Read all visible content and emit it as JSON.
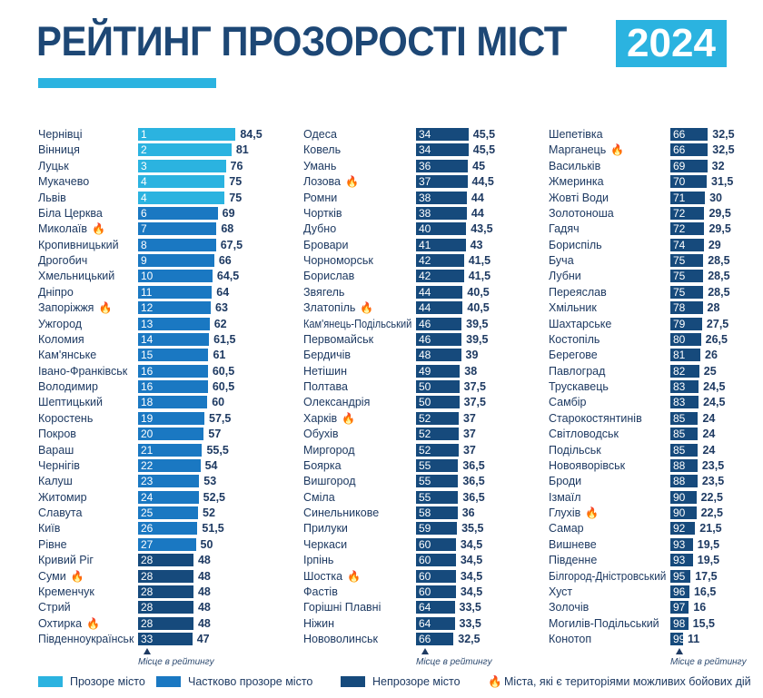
{
  "header": {
    "title": "РЕЙТИНГ ПРОЗОРОСТІ МІСТ",
    "year": "2024"
  },
  "colors": {
    "transparent": "#2bb3e0",
    "partial": "#1a78c2",
    "opaque": "#164a7c",
    "fire": "#f2a33a"
  },
  "rank_note": "Місце в рейтингу",
  "legend": [
    {
      "key": "transparent",
      "label": "Прозоре місто"
    },
    {
      "key": "partial",
      "label": "Частково прозоре місто"
    },
    {
      "key": "opaque",
      "label": "Непрозоре місто"
    },
    {
      "key": "fire",
      "label": "Міста, які є територіями можливих бойових дій",
      "icon": "fire-icon"
    }
  ],
  "chart_data": {
    "type": "bar",
    "title": "РЕЙТИНГ ПРОЗОРОСТІ МІСТ 2024",
    "orientation": "horizontal",
    "fields": [
      "city",
      "rank",
      "score",
      "category",
      "combat_zone"
    ],
    "rows": [
      [
        "Чернівці",
        1,
        84.5,
        "transparent",
        false
      ],
      [
        "Вінниця",
        2,
        81,
        "transparent",
        false
      ],
      [
        "Луцьк",
        3,
        76,
        "transparent",
        false
      ],
      [
        "Мукачево",
        4,
        75,
        "transparent",
        false
      ],
      [
        "Львів",
        4,
        75,
        "transparent",
        false
      ],
      [
        "Біла Церква",
        6,
        69,
        "partial",
        false
      ],
      [
        "Миколаїв",
        7,
        68,
        "partial",
        true
      ],
      [
        "Кропивницький",
        8,
        67.5,
        "partial",
        false
      ],
      [
        "Дрогобич",
        9,
        66,
        "partial",
        false
      ],
      [
        "Хмельницький",
        10,
        64.5,
        "partial",
        false
      ],
      [
        "Дніпро",
        11,
        64,
        "partial",
        false
      ],
      [
        "Запоріжжя",
        12,
        63,
        "partial",
        true
      ],
      [
        "Ужгород",
        13,
        62,
        "partial",
        false
      ],
      [
        "Коломия",
        14,
        61.5,
        "partial",
        false
      ],
      [
        "Кам'янське",
        15,
        61,
        "partial",
        false
      ],
      [
        "Івано-Франківськ",
        16,
        60.5,
        "partial",
        false
      ],
      [
        "Володимир",
        16,
        60.5,
        "partial",
        false
      ],
      [
        "Шептицький",
        18,
        60,
        "partial",
        false
      ],
      [
        "Коростень",
        19,
        57.5,
        "partial",
        false
      ],
      [
        "Покров",
        20,
        57,
        "partial",
        false
      ],
      [
        "Вараш",
        21,
        55.5,
        "partial",
        false
      ],
      [
        "Чернігів",
        22,
        54,
        "partial",
        false
      ],
      [
        "Калуш",
        23,
        53,
        "partial",
        false
      ],
      [
        "Житомир",
        24,
        52.5,
        "partial",
        false
      ],
      [
        "Славута",
        25,
        52,
        "partial",
        false
      ],
      [
        "Київ",
        26,
        51.5,
        "partial",
        false
      ],
      [
        "Рівне",
        27,
        50,
        "partial",
        false
      ],
      [
        "Кривий Ріг",
        28,
        48,
        "opaque",
        false
      ],
      [
        "Суми",
        28,
        48,
        "opaque",
        true
      ],
      [
        "Кременчук",
        28,
        48,
        "opaque",
        false
      ],
      [
        "Стрий",
        28,
        48,
        "opaque",
        false
      ],
      [
        "Охтирка",
        28,
        48,
        "opaque",
        true
      ],
      [
        "Південноукраїнськ",
        33,
        47,
        "opaque",
        false
      ],
      [
        "Одеса",
        34,
        45.5,
        "opaque",
        false
      ],
      [
        "Ковель",
        34,
        45.5,
        "opaque",
        false
      ],
      [
        "Умань",
        36,
        45,
        "opaque",
        false
      ],
      [
        "Лозова",
        37,
        44.5,
        "opaque",
        true
      ],
      [
        "Ромни",
        38,
        44,
        "opaque",
        false
      ],
      [
        "Чортків",
        38,
        44,
        "opaque",
        false
      ],
      [
        "Дубно",
        40,
        43.5,
        "opaque",
        false
      ],
      [
        "Бровари",
        41,
        43,
        "opaque",
        false
      ],
      [
        "Чорноморськ",
        42,
        41.5,
        "opaque",
        false
      ],
      [
        "Борислав",
        42,
        41.5,
        "opaque",
        false
      ],
      [
        "Звягель",
        44,
        40.5,
        "opaque",
        false
      ],
      [
        "Златопіль",
        44,
        40.5,
        "opaque",
        true
      ],
      [
        "Кам'янець-Подільський",
        46,
        39.5,
        "opaque",
        false
      ],
      [
        "Первомайськ",
        46,
        39.5,
        "opaque",
        false
      ],
      [
        "Бердичів",
        48,
        39,
        "opaque",
        false
      ],
      [
        "Нетішин",
        49,
        38,
        "opaque",
        false
      ],
      [
        "Полтава",
        50,
        37.5,
        "opaque",
        false
      ],
      [
        "Олександрія",
        50,
        37.5,
        "opaque",
        false
      ],
      [
        "Харків",
        52,
        37,
        "opaque",
        true
      ],
      [
        "Обухів",
        52,
        37,
        "opaque",
        false
      ],
      [
        "Миргород",
        52,
        37,
        "opaque",
        false
      ],
      [
        "Боярка",
        55,
        36.5,
        "opaque",
        false
      ],
      [
        "Вишгород",
        55,
        36.5,
        "opaque",
        false
      ],
      [
        "Сміла",
        55,
        36.5,
        "opaque",
        false
      ],
      [
        "Синельникове",
        58,
        36,
        "opaque",
        false
      ],
      [
        "Прилуки",
        59,
        35.5,
        "opaque",
        false
      ],
      [
        "Черкаси",
        60,
        34.5,
        "opaque",
        false
      ],
      [
        "Ірпінь",
        60,
        34.5,
        "opaque",
        false
      ],
      [
        "Шостка",
        60,
        34.5,
        "opaque",
        true
      ],
      [
        "Фастів",
        60,
        34.5,
        "opaque",
        false
      ],
      [
        "Горішні Плавні",
        64,
        33.5,
        "opaque",
        false
      ],
      [
        "Ніжин",
        64,
        33.5,
        "opaque",
        false
      ],
      [
        "Нововолинськ",
        66,
        32.5,
        "opaque",
        false
      ],
      [
        "Шепетівка",
        66,
        32.5,
        "opaque",
        false
      ],
      [
        "Марганець",
        66,
        32.5,
        "opaque",
        true
      ],
      [
        "Васильків",
        69,
        32,
        "opaque",
        false
      ],
      [
        "Жмеринка",
        70,
        31.5,
        "opaque",
        false
      ],
      [
        "Жовті Води",
        71,
        30,
        "opaque",
        false
      ],
      [
        "Золотоноша",
        72,
        29.5,
        "opaque",
        false
      ],
      [
        "Гадяч",
        72,
        29.5,
        "opaque",
        false
      ],
      [
        "Бориспіль",
        74,
        29,
        "opaque",
        false
      ],
      [
        "Буча",
        75,
        28.5,
        "opaque",
        false
      ],
      [
        "Лубни",
        75,
        28.5,
        "opaque",
        false
      ],
      [
        "Переяслав",
        75,
        28.5,
        "opaque",
        false
      ],
      [
        "Хмільник",
        78,
        28,
        "opaque",
        false
      ],
      [
        "Шахтарське",
        79,
        27.5,
        "opaque",
        false
      ],
      [
        "Костопіль",
        80,
        26.5,
        "opaque",
        false
      ],
      [
        "Берегове",
        81,
        26,
        "opaque",
        false
      ],
      [
        "Павлоград",
        82,
        25,
        "opaque",
        false
      ],
      [
        "Трускавець",
        83,
        24.5,
        "opaque",
        false
      ],
      [
        "Самбір",
        83,
        24.5,
        "opaque",
        false
      ],
      [
        "Старокостянтинів",
        85,
        24,
        "opaque",
        false
      ],
      [
        "Світловодськ",
        85,
        24,
        "opaque",
        false
      ],
      [
        "Подільськ",
        85,
        24,
        "opaque",
        false
      ],
      [
        "Новояворівськ",
        88,
        23.5,
        "opaque",
        false
      ],
      [
        "Броди",
        88,
        23.5,
        "opaque",
        false
      ],
      [
        "Ізмаїл",
        90,
        22.5,
        "opaque",
        false
      ],
      [
        "Глухів",
        90,
        22.5,
        "opaque",
        true
      ],
      [
        "Самар",
        92,
        21.5,
        "opaque",
        false
      ],
      [
        "Вишневе",
        93,
        19.5,
        "opaque",
        false
      ],
      [
        "Південне",
        93,
        19.5,
        "opaque",
        false
      ],
      [
        "Білгород-Дністровський",
        95,
        17.5,
        "opaque",
        false
      ],
      [
        "Хуст",
        96,
        16.5,
        "opaque",
        false
      ],
      [
        "Золочів",
        97,
        16,
        "opaque",
        false
      ],
      [
        "Могилів-Подільський",
        98,
        15.5,
        "opaque",
        false
      ],
      [
        "Конотоп",
        99,
        11,
        "opaque",
        false
      ]
    ]
  }
}
